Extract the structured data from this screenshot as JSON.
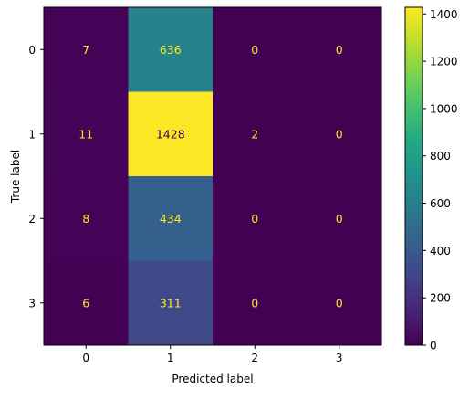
{
  "chart_data": {
    "type": "heatmap",
    "title": "",
    "xlabel": "Predicted label",
    "ylabel": "True label",
    "x_categories": [
      "0",
      "1",
      "2",
      "3"
    ],
    "y_categories": [
      "0",
      "1",
      "2",
      "3"
    ],
    "matrix": [
      [
        7,
        636,
        0,
        0
      ],
      [
        11,
        1428,
        2,
        0
      ],
      [
        8,
        434,
        0,
        0
      ],
      [
        6,
        311,
        0,
        0
      ]
    ],
    "colormap": "viridis",
    "vmin": 0,
    "vmax": 1428,
    "colorbar_ticks": [
      0,
      200,
      400,
      600,
      800,
      1000,
      1200,
      1400
    ],
    "text_color_dark_cells": "#fde725",
    "text_color_light_cells": "#440154"
  }
}
